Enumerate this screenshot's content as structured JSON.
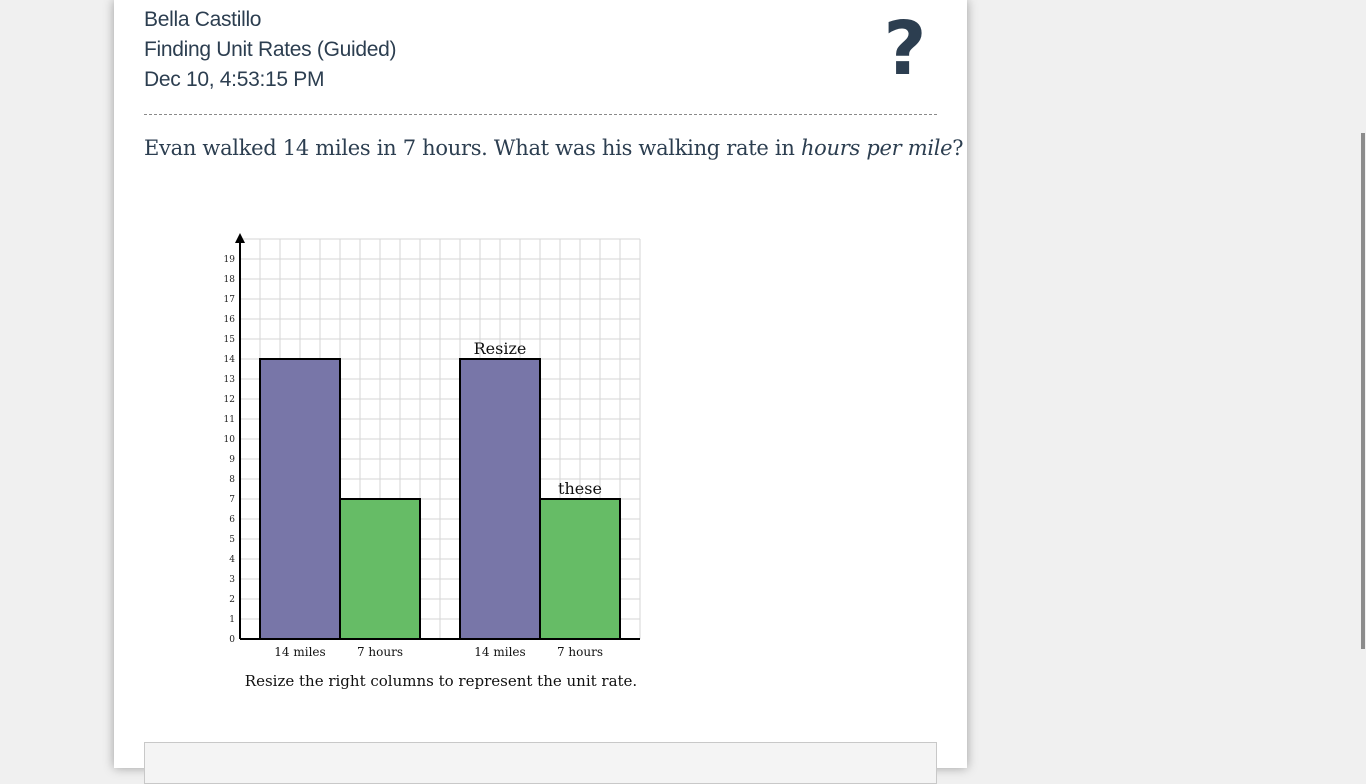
{
  "header": {
    "student_name": "Bella Castillo",
    "assignment": "Finding Unit Rates (Guided)",
    "timestamp": "Dec 10, 4:53:15 PM",
    "help_symbol": "?"
  },
  "question": {
    "text_before": "Evan walked 14 miles in 7 hours. What was his walking rate in ",
    "emphasis": "hours per mile",
    "text_after": "?"
  },
  "chart_data": {
    "type": "bar",
    "categories": [
      "14 miles",
      "7 hours",
      "14 miles",
      "7 hours"
    ],
    "values": [
      14,
      7,
      14,
      7
    ],
    "colors": [
      "#7876a8",
      "#66bc66",
      "#7876a8",
      "#66bc66"
    ],
    "group_gap_after_index": 1,
    "ylim": [
      0,
      20
    ],
    "yticks": [
      0,
      1,
      2,
      3,
      4,
      5,
      6,
      7,
      8,
      9,
      10,
      11,
      12,
      13,
      14,
      15,
      16,
      17,
      18,
      19
    ],
    "grid": true,
    "annotations": [
      {
        "bar_index": 2,
        "text": "Resize"
      },
      {
        "bar_index": 3,
        "text": "these"
      }
    ],
    "caption": "Resize the right columns to represent the unit rate."
  },
  "colors": {
    "text": "#2c3e50",
    "miles_bar": "#7876a8",
    "hours_bar": "#66bc66",
    "background": "#f0f0f0"
  }
}
